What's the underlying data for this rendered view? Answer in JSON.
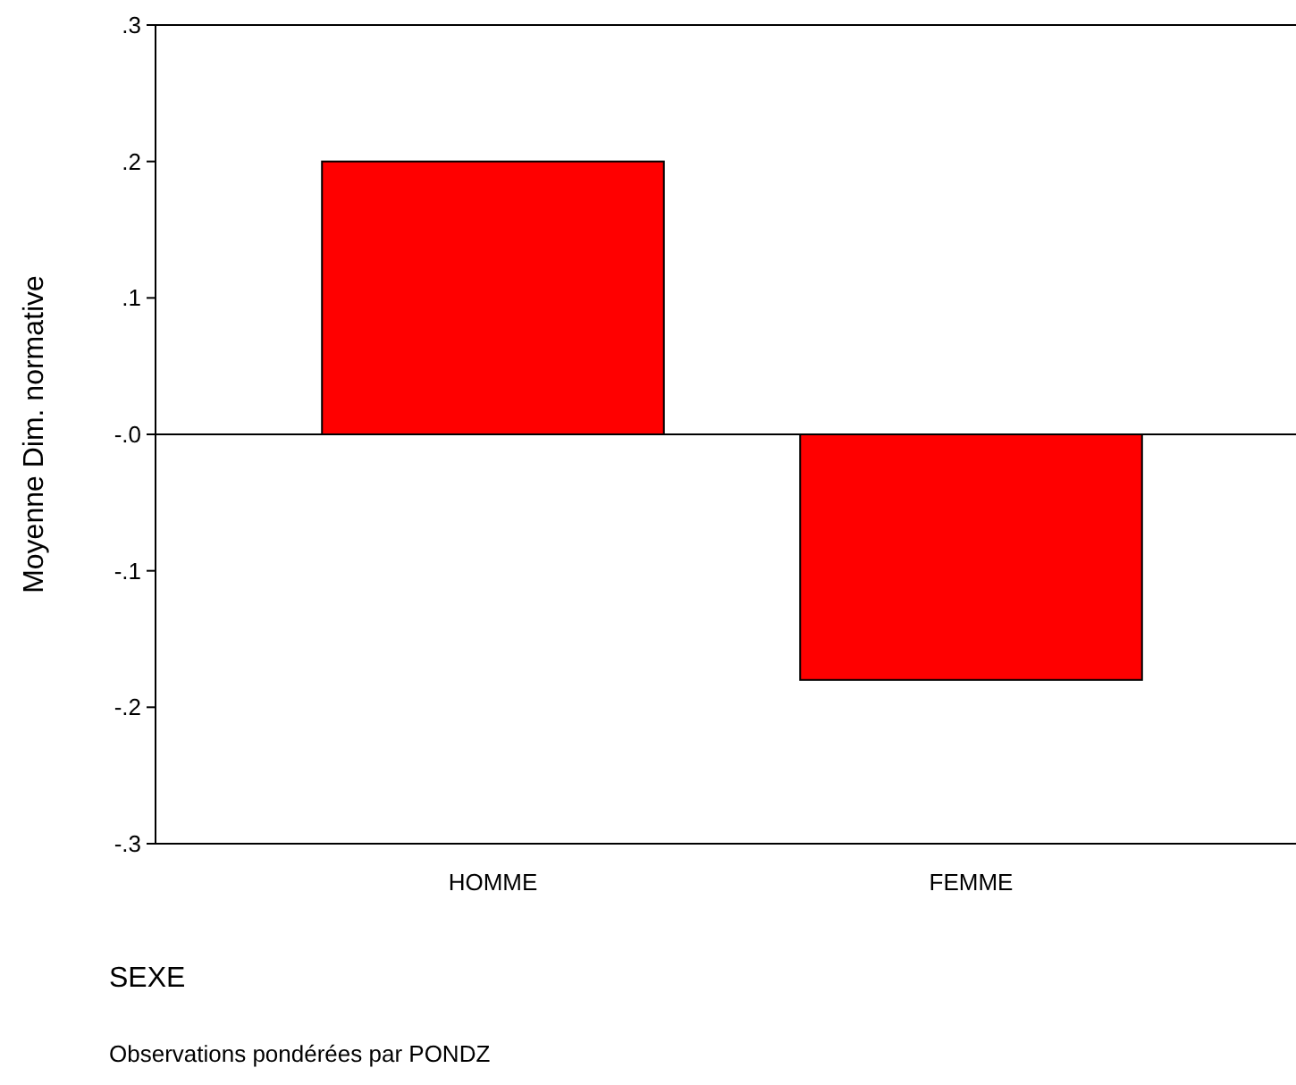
{
  "chart_data": {
    "type": "bar",
    "categories": [
      "HOMME",
      "FEMME"
    ],
    "values": [
      0.2,
      -0.18
    ],
    "color": "#ff0000",
    "ylim": [
      -0.3,
      0.3
    ],
    "yticks": [
      {
        "value": 0.3,
        "label": ".3"
      },
      {
        "value": 0.2,
        "label": ".2"
      },
      {
        "value": 0.1,
        "label": ".1"
      },
      {
        "value": 0,
        "label": "-.0"
      },
      {
        "value": -0.1,
        "label": "-.1"
      },
      {
        "value": -0.2,
        "label": "-.2"
      },
      {
        "value": -0.3,
        "label": "-.3"
      }
    ],
    "xlabel": "SEXE",
    "ylabel": "Moyenne Dim. normative",
    "annotations": [
      "Observations pondérées par PONDZ"
    ]
  }
}
